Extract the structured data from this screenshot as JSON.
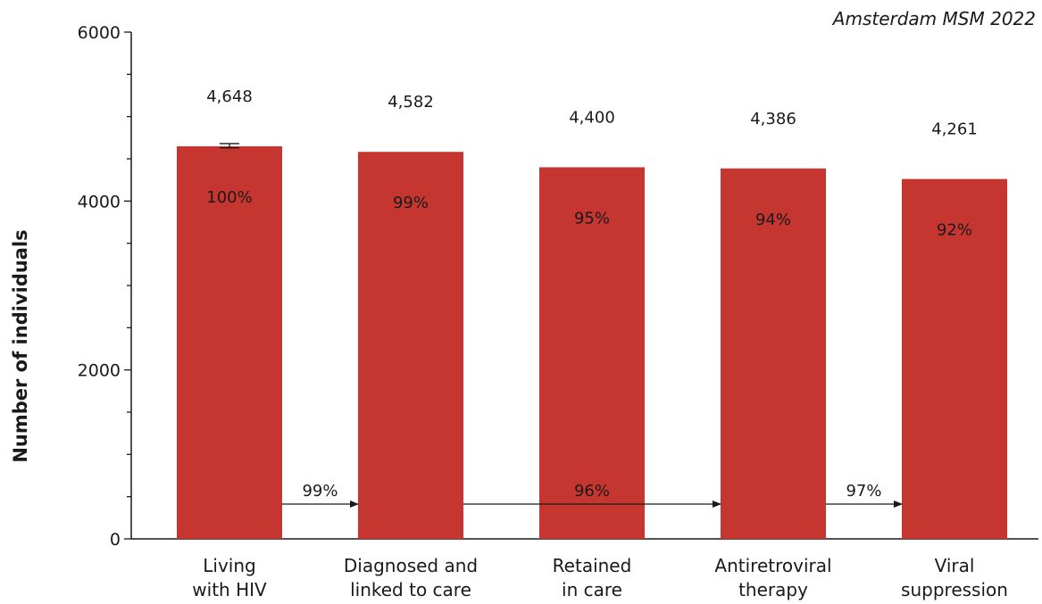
{
  "chart_data": {
    "type": "bar",
    "title": "Amsterdam MSM 2022",
    "xlabel": "",
    "ylabel": "Number of individuals",
    "ylim": [
      0,
      6000
    ],
    "yticks": [
      0,
      2000,
      4000,
      6000
    ],
    "y_minor_step": 500,
    "grid": false,
    "categories": [
      [
        "Living",
        "with HIV"
      ],
      [
        "Diagnosed and",
        "linked to care"
      ],
      [
        "Retained",
        "in care"
      ],
      [
        "Antiretroviral",
        "therapy"
      ],
      [
        "Viral",
        "suppression"
      ]
    ],
    "values": [
      4648,
      4582,
      4400,
      4386,
      4261
    ],
    "value_labels": [
      "4,648",
      "4,582",
      "4,400",
      "4,386",
      "4,261"
    ],
    "percent_labels": [
      "100%",
      "99%",
      "95%",
      "94%",
      "92%"
    ],
    "error_bar": {
      "index": 0,
      "low": 4630,
      "high": 4680
    },
    "step_arrows": [
      {
        "from": 0,
        "to": 1,
        "label": "99%"
      },
      {
        "from": 1,
        "to": 3,
        "label": "96%"
      },
      {
        "from": 3,
        "to": 4,
        "label": "97%"
      }
    ],
    "bar_color": "#c63631"
  }
}
